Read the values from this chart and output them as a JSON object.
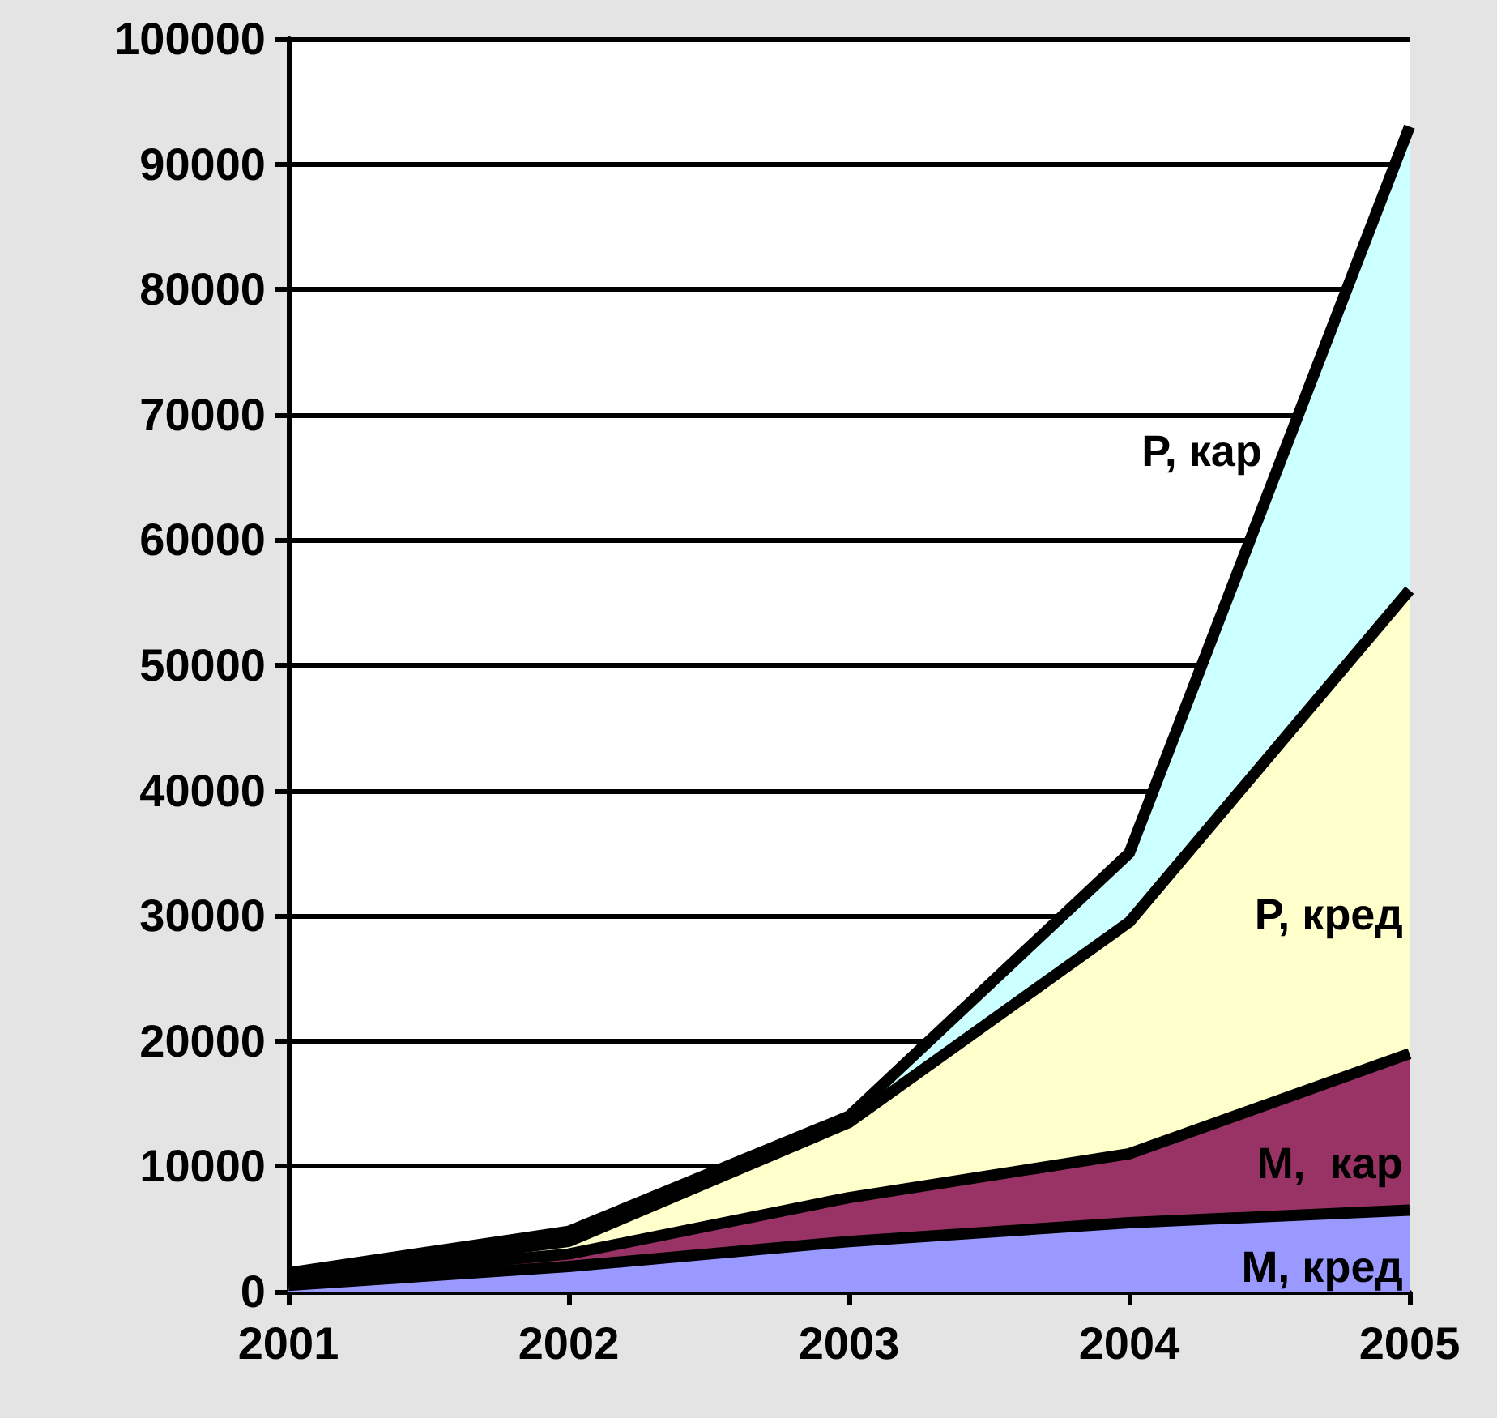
{
  "chart_data": {
    "type": "area",
    "stacked": true,
    "x": [
      2001,
      2002,
      2003,
      2004,
      2005
    ],
    "xlim": [
      2001,
      2005
    ],
    "xticks": [
      2001,
      2002,
      2003,
      2004,
      2005
    ],
    "ylim": [
      0,
      100000
    ],
    "yticks": [
      0,
      10000,
      20000,
      30000,
      40000,
      50000,
      60000,
      70000,
      80000,
      90000,
      100000
    ],
    "grid": "y",
    "legend": false,
    "series": [
      {
        "name": "М, кред",
        "color": "#9999ff",
        "values": [
          500,
          2000,
          4000,
          5500,
          6500
        ]
      },
      {
        "name": "М,  кар",
        "color": "#993366",
        "values": [
          500,
          1000,
          3500,
          5500,
          12500
        ]
      },
      {
        "name": "Р, кред",
        "color": "#ffffcc",
        "values": [
          200,
          1000,
          6000,
          18500,
          37000
        ]
      },
      {
        "name": "Р, кар",
        "color": "#ccffff",
        "values": [
          300,
          800,
          500,
          5500,
          37000
        ]
      }
    ]
  }
}
